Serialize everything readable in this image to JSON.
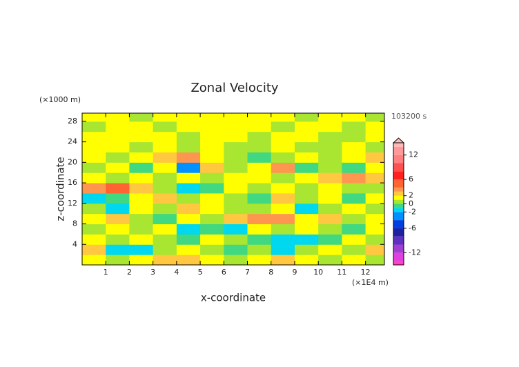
{
  "chart_data": {
    "type": "heatmap",
    "title": "Zonal Velocity",
    "x_unit": "(×1E4 m)",
    "z_unit": "(×1000 m)",
    "time_label": "103200 s",
    "x_label": "x-coordinate",
    "z_label": "z-coordinate",
    "xlim": [
      0,
      12.8
    ],
    "xticks": [
      1,
      2,
      3,
      4,
      5,
      6,
      7,
      8,
      9,
      10,
      11,
      12
    ],
    "ylim": [
      0,
      29.6
    ],
    "yticks": [
      4,
      8,
      12,
      16,
      20,
      24,
      28
    ],
    "x": [
      0.5,
      1.5,
      2.5,
      3.5,
      4.5,
      5.5,
      6.5,
      7.5,
      8.5,
      9.5,
      10.5,
      11.5,
      12.5
    ],
    "z": [
      1,
      3,
      5,
      7,
      9,
      11,
      13,
      15,
      17,
      19,
      21,
      23,
      25,
      27,
      29
    ],
    "values": [
      [
        1.5,
        0.5,
        1.5,
        2.5,
        2.5,
        1.5,
        0.5,
        1.5,
        2.5,
        1.5,
        0.5,
        1.5,
        0.5
      ],
      [
        2.5,
        -1.5,
        -1.5,
        0.5,
        1.5,
        0.5,
        -0.5,
        0.5,
        -1.5,
        0.5,
        1.5,
        0.5,
        2.5
      ],
      [
        1.5,
        0.5,
        1.5,
        0.5,
        -0.5,
        1.5,
        0.5,
        -0.5,
        -1.5,
        -1.5,
        -0.5,
        1.5,
        0.5
      ],
      [
        0.5,
        1.5,
        0.5,
        1.5,
        -1.5,
        -0.5,
        -1.5,
        1.5,
        0.5,
        1.5,
        0.5,
        -0.5,
        1.5
      ],
      [
        1.5,
        2.5,
        0.5,
        -0.5,
        1.5,
        0.5,
        2.5,
        3.5,
        3.5,
        1.5,
        2.5,
        0.5,
        1.5
      ],
      [
        0.5,
        -1.5,
        1.5,
        0.5,
        2.5,
        1.5,
        0.5,
        0.5,
        1.5,
        -1.5,
        0.5,
        1.5,
        0.5
      ],
      [
        -1.5,
        -0.5,
        1.5,
        2.5,
        0.5,
        1.5,
        0.5,
        -0.5,
        2.5,
        0.5,
        1.5,
        -0.5,
        1.5
      ],
      [
        3.5,
        4.5,
        2.5,
        0.5,
        -1.5,
        -0.5,
        1.5,
        0.5,
        1.5,
        0.5,
        1.5,
        0.5,
        0.5
      ],
      [
        1.5,
        0.5,
        1.5,
        0.5,
        1.5,
        0.5,
        1.5,
        1.5,
        0.5,
        1.5,
        2.5,
        3.5,
        2.5
      ],
      [
        0.5,
        1.5,
        -0.5,
        1.5,
        -2.5,
        2.5,
        0.5,
        1.5,
        3.5,
        -0.5,
        0.5,
        -0.5,
        1.5
      ],
      [
        1.5,
        0.5,
        1.5,
        2.5,
        3.5,
        1.5,
        0.5,
        -0.5,
        0.5,
        1.5,
        0.5,
        1.5,
        2.5
      ],
      [
        1.5,
        1.5,
        0.5,
        1.5,
        0.5,
        1.5,
        0.5,
        0.5,
        1.5,
        0.5,
        0.5,
        1.5,
        0.5
      ],
      [
        1.5,
        1.5,
        1.5,
        1.5,
        0.5,
        1.5,
        1.5,
        0.5,
        1.5,
        1.5,
        0.5,
        0.5,
        1.5
      ],
      [
        0.5,
        1.5,
        1.5,
        0.5,
        1.5,
        1.5,
        1.5,
        1.5,
        0.5,
        1.5,
        1.5,
        0.5,
        1.5
      ],
      [
        1.5,
        1.5,
        0.5,
        1.5,
        1.5,
        1.5,
        1.5,
        1.5,
        1.5,
        0.5,
        1.5,
        1.5,
        0.5
      ]
    ],
    "colorbar": {
      "lim": [
        -15,
        15
      ],
      "ticks": [
        12,
        6,
        2,
        0,
        -2,
        -6,
        -12
      ],
      "levels": [
        -14,
        -12,
        -10,
        -8,
        -6,
        -4,
        -2,
        -1,
        0,
        1,
        2,
        3,
        4,
        6,
        8,
        10,
        12,
        14
      ],
      "colors": [
        "#ff40c0",
        "#e040e0",
        "#a040d0",
        "#6030c0",
        "#2020a0",
        "#0040e0",
        "#0090ff",
        "#00d8f0",
        "#40d880",
        "#a8e632",
        "#ffff00",
        "#ffc840",
        "#ff9650",
        "#ff6432",
        "#ff2020",
        "#ff5050",
        "#ff8080",
        "#ff9898",
        "#ffb8b8"
      ]
    }
  }
}
